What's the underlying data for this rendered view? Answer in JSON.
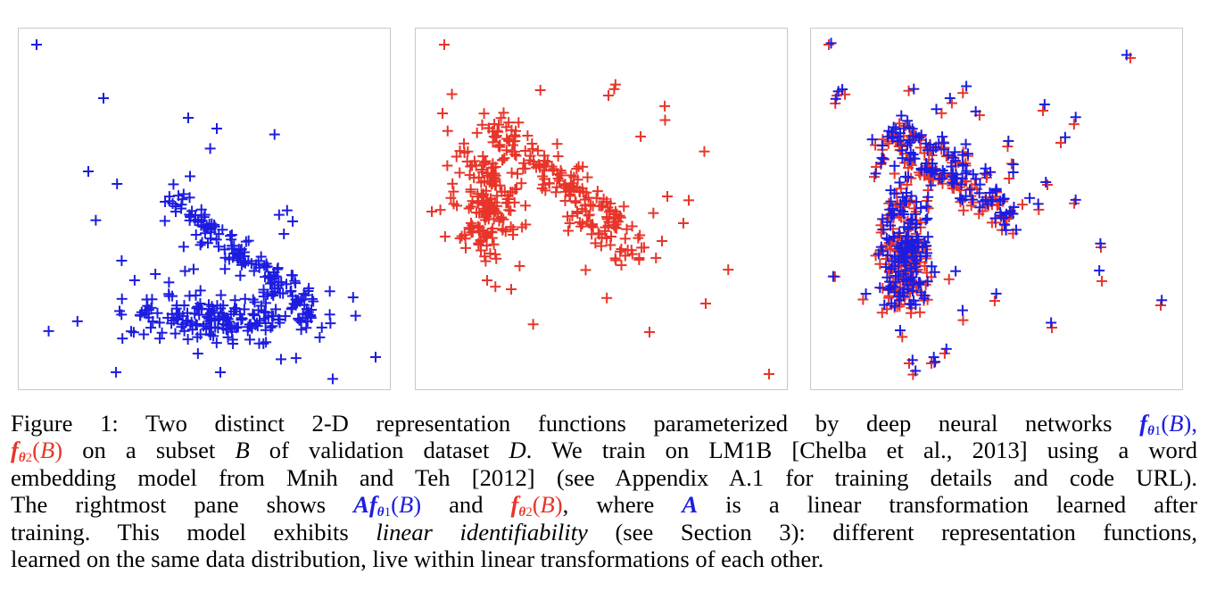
{
  "figure": {
    "colors": {
      "blue": "#1d1de0",
      "red": "#e8352a",
      "frame": "#c8c8c8"
    },
    "marker": "plus",
    "caption": {
      "l1a": "Figure 1: Two distinct 2-D representation functions parameterized by deep neural networks ",
      "f": "f",
      "theta1": "θ",
      "sub1": "1",
      "arg1": "(",
      "B1": "B",
      "arg1c": "),",
      "l2a": "",
      "theta2": "θ",
      "sub2": "2",
      "l2b": " on a subset ",
      "B": "B",
      "l2c": " of validation dataset ",
      "D": "D",
      "l2d": ". We train on LM1B [Chelba et al., 2013] using a word",
      "l3": "embedding model from Mnih and Teh [2012] (see Appendix A.1 for training details and code URL).",
      "l4a": "The rightmost pane shows ",
      "A": "A",
      "l4b": " and ",
      "l4c": ", where ",
      "l4d": " is a linear transformation learned after",
      "l5a": "training. This model exhibits ",
      "l5em": "linear identifiability",
      "l5b": " (see Section 3): different representation functions,",
      "l6": "learned on the same data distribution, live within linear transformations of each other."
    }
  }
}
